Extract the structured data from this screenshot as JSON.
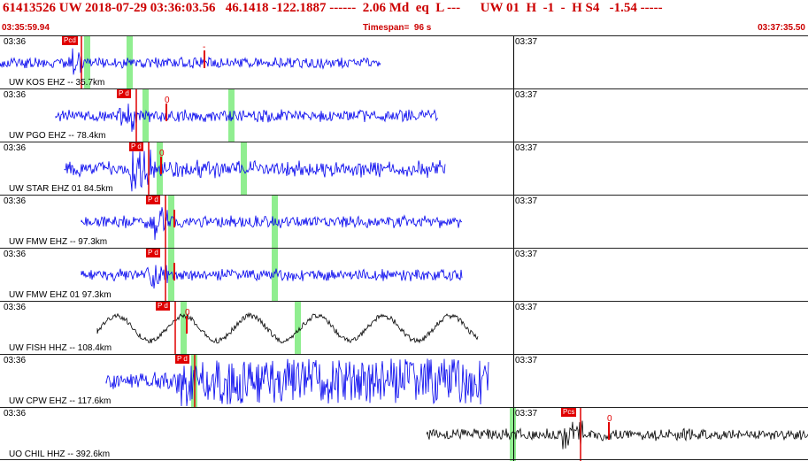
{
  "header": {
    "title": "61413526 UW 2018-07-29 03:36:03.56   46.1418 -122.1887 ------  2.06 Md  eq  L ---      UW 01  H  -1  -  H S4   -1.54 -----",
    "start_time": "03:35:59.94",
    "timespan": "Timespan=  96 s",
    "end_time": "03:37:35.50"
  },
  "colors": {
    "header_text": "#cc0000",
    "trace_short_period": "#0000ee",
    "trace_broadband": "#000000",
    "pick_marker": "#e00000",
    "window_highlight": "#90ee90"
  },
  "panels": [
    {
      "channel": "UW KOS EHZ -- 35.7km",
      "tick_a": "03:36",
      "tick_b": "03:37",
      "pick": "Pcd",
      "s_mark": "-",
      "color": "blue",
      "amplitude": 0.35
    },
    {
      "channel": "UW PGO EHZ -- 78.4km",
      "tick_a": "03:36",
      "tick_b": "03:37",
      "pick": "P d",
      "s_mark": "0",
      "color": "blue",
      "amplitude": 0.5
    },
    {
      "channel": "UW STAR EHZ 01 84.5km",
      "tick_a": "03:36",
      "tick_b": "03:37",
      "pick": "P d",
      "s_mark": "0",
      "color": "blue",
      "amplitude": 0.9
    },
    {
      "channel": "UW FMW EHZ -- 97.3km",
      "tick_a": "03:36",
      "tick_b": "03:37",
      "pick": "P d",
      "s_mark": "",
      "color": "blue",
      "amplitude": 0.45
    },
    {
      "channel": "UW FMW EHZ 01 97.3km",
      "tick_a": "03:36",
      "tick_b": "03:37",
      "pick": "P d",
      "s_mark": "",
      "color": "blue",
      "amplitude": 0.45
    },
    {
      "channel": "UW FISH HHZ -- 108.4km",
      "tick_a": "03:36",
      "tick_b": "03:37",
      "pick": "P d",
      "s_mark": "0",
      "color": "black",
      "amplitude": 0.6
    },
    {
      "channel": "UW CPW EHZ -- 117.6km",
      "tick_a": "03:36",
      "tick_b": "03:37",
      "pick": "P d",
      "s_mark": "",
      "color": "blue",
      "amplitude": 0.95
    },
    {
      "channel": "UO CHIL HHZ -- 392.6km",
      "tick_a": "03:36",
      "tick_b": "03:37",
      "pick": "Pcs",
      "s_mark": "0",
      "color": "black",
      "amplitude": 0.45
    }
  ]
}
